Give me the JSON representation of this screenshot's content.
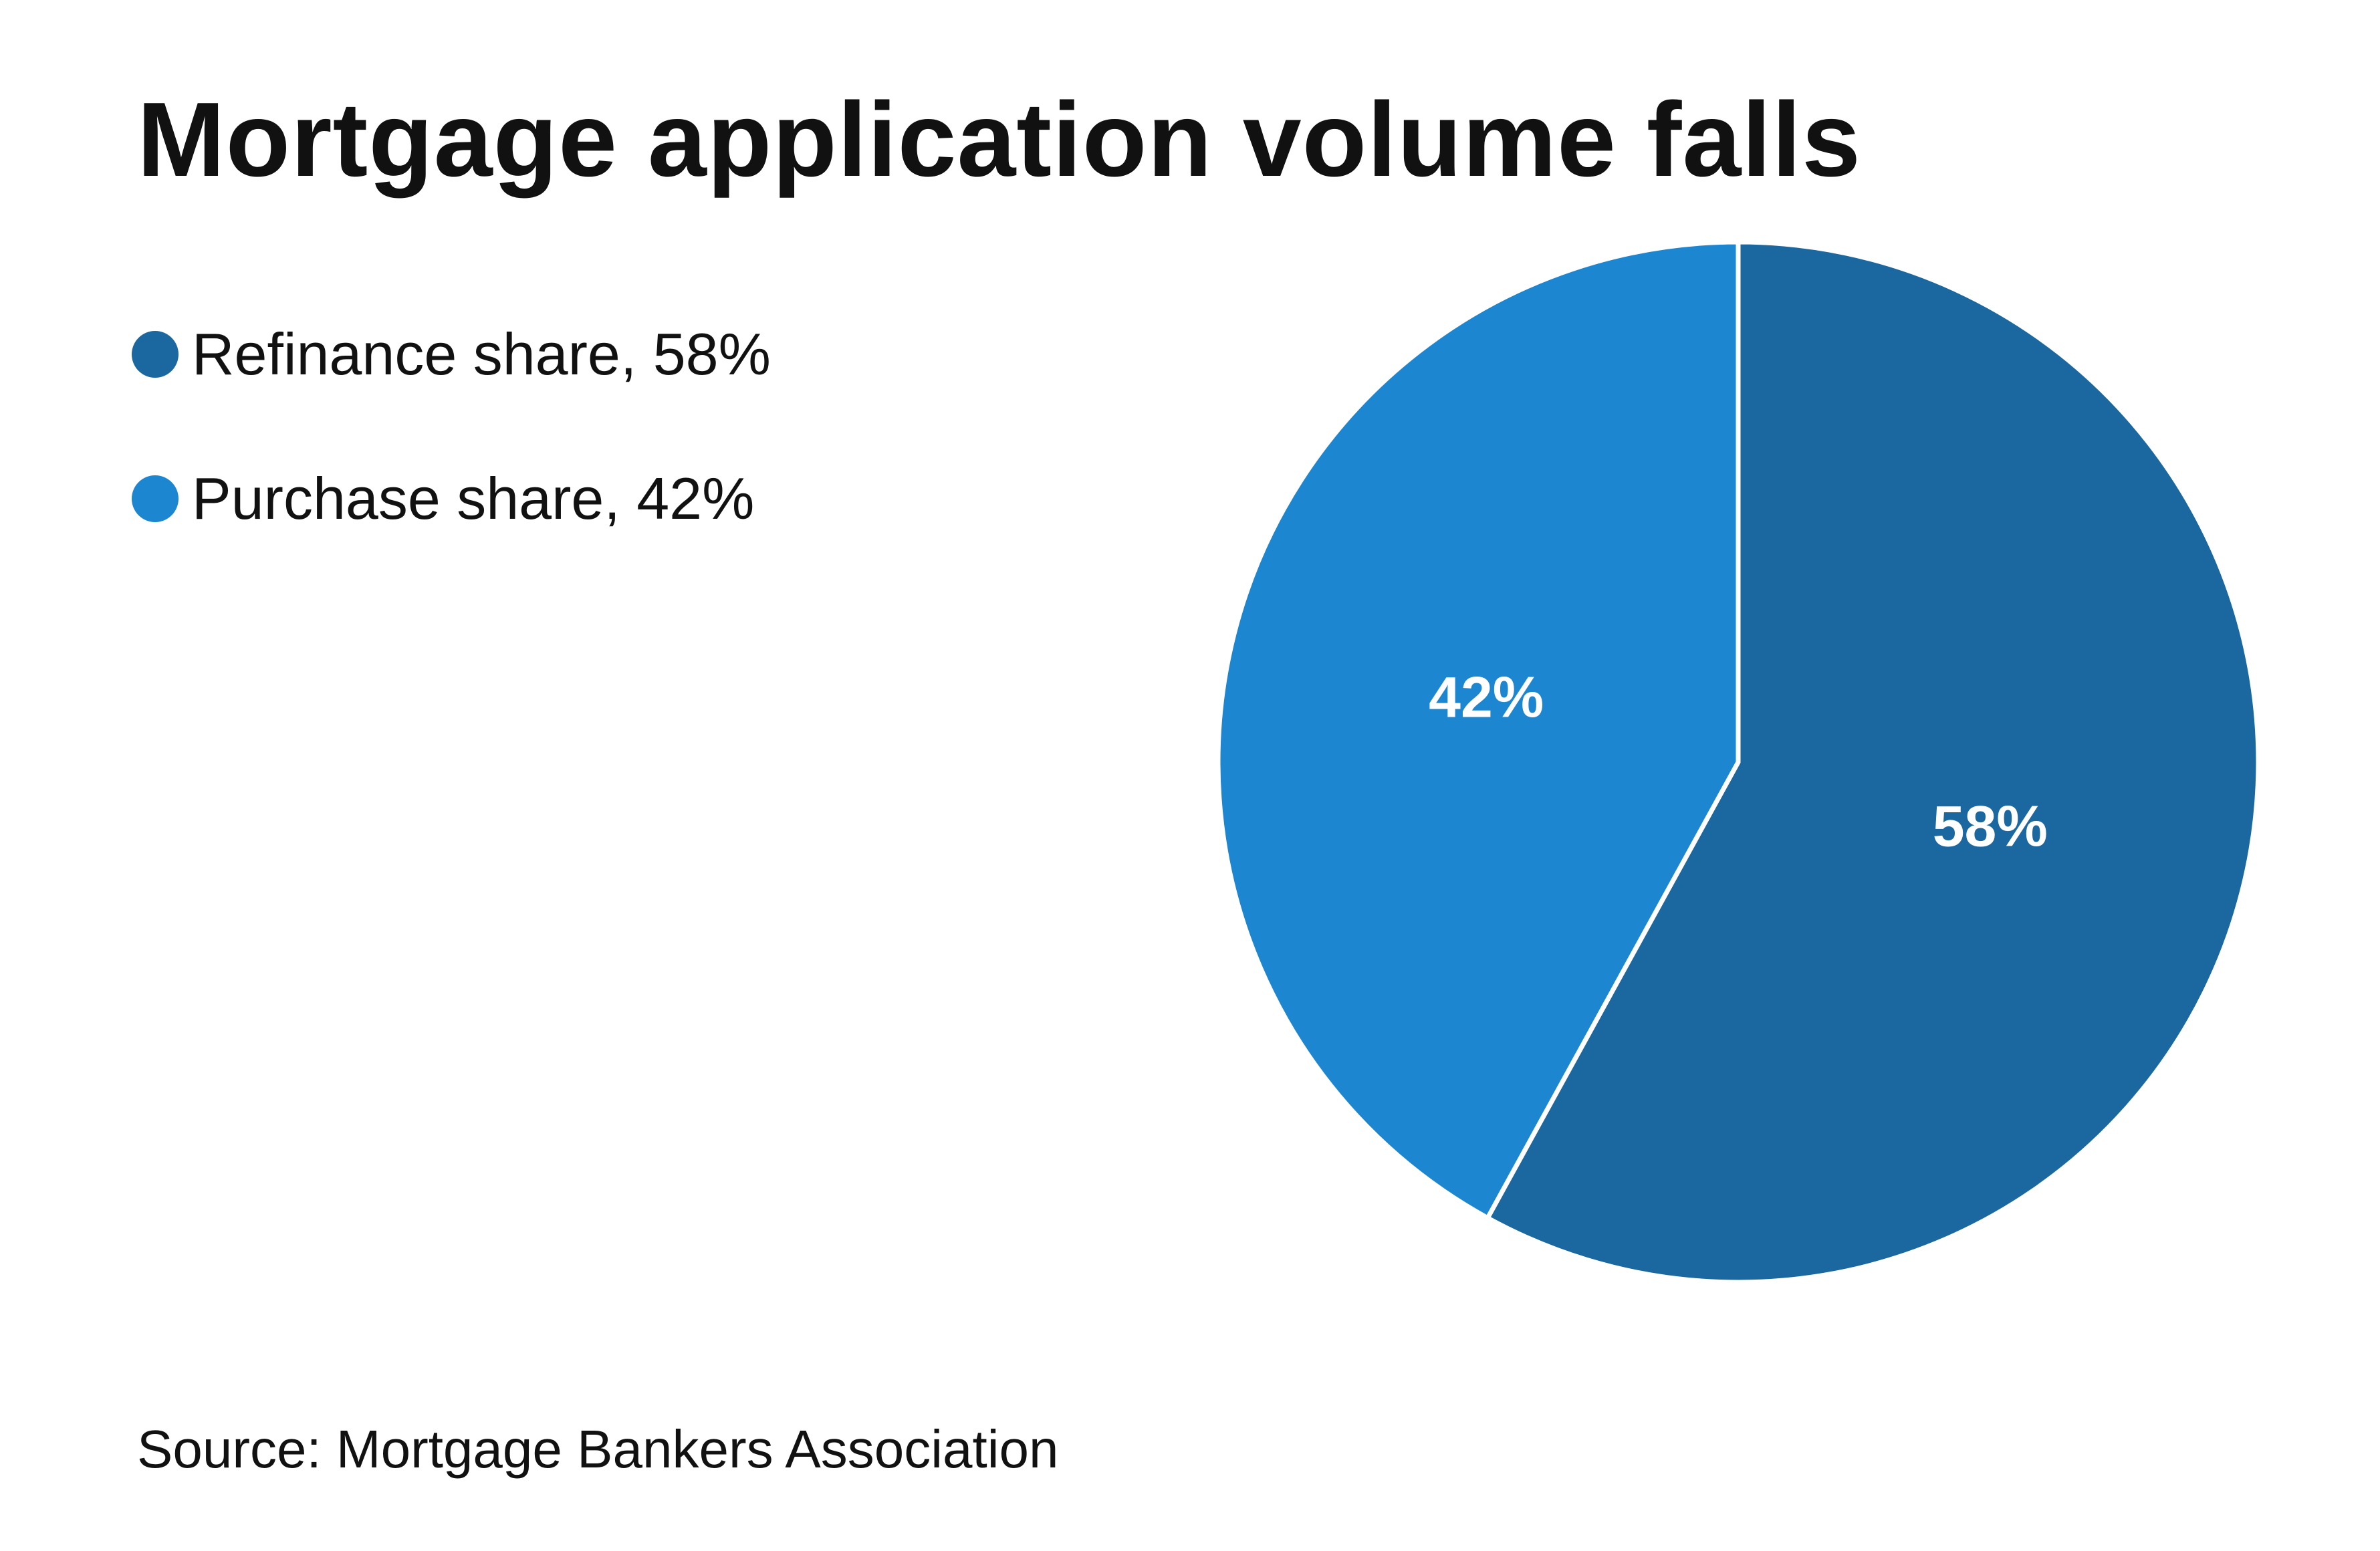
{
  "title": "Mortgage application volume falls",
  "source": "Source: Mortgage Bankers Association",
  "chart_data": {
    "type": "pie",
    "title": "Mortgage application volume falls",
    "legend_position": "top-left",
    "slices": [
      {
        "name": "Refinance share, 58%",
        "value": 58,
        "label": "58%",
        "color": "#1b679f"
      },
      {
        "name": "Purchase share, 42%",
        "value": 42,
        "label": "42%",
        "color": "#1c86d1"
      }
    ]
  }
}
